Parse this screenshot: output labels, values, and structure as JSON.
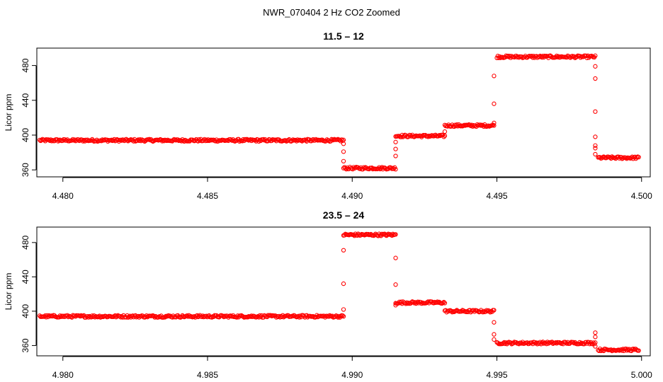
{
  "figure_title": "NWR_070404  2 Hz CO2 Zoomed",
  "colors": {
    "points": "#ff0000",
    "axis": "#000000"
  },
  "chart_data": [
    {
      "type": "scatter",
      "title": "11.5 – 12",
      "xlabel": "",
      "ylabel": "Licor ppm",
      "xlim": [
        4.4791,
        4.5003
      ],
      "ylim": [
        352,
        500
      ],
      "xticks": [
        "4.480",
        "4.485",
        "4.490",
        "4.495",
        "4.500"
      ],
      "xtick_values": [
        4.48,
        4.485,
        4.49,
        4.495,
        4.5
      ],
      "yticks": [
        "360",
        "400",
        "440",
        "480"
      ],
      "ytick_values": [
        360,
        400,
        440,
        480
      ],
      "grid": false,
      "marker": "open-circle",
      "segments": [
        {
          "x_start": 4.4792,
          "x_end": 4.4897,
          "y": 394
        },
        {
          "x_start": 4.4897,
          "x_end": 4.4915,
          "y": 362
        },
        {
          "x_start": 4.4915,
          "x_end": 4.4932,
          "y": 399
        },
        {
          "x_start": 4.4932,
          "x_end": 4.4949,
          "y": 411
        },
        {
          "x_start": 4.495,
          "x_end": 4.4984,
          "y": 490
        },
        {
          "x_start": 4.4985,
          "x_end": 4.4999,
          "y": 374
        }
      ],
      "transitions": [
        {
          "x": 4.4897,
          "y": [
            390,
            381,
            370
          ]
        },
        {
          "x": 4.4915,
          "y": [
            376,
            384,
            392
          ]
        },
        {
          "x": 4.4932,
          "y": [
            404
          ]
        },
        {
          "x": 4.4949,
          "y": [
            414,
            436,
            468
          ]
        },
        {
          "x": 4.4984,
          "y": [
            479,
            465,
            427,
            398,
            388,
            385,
            378
          ]
        }
      ]
    },
    {
      "type": "scatter",
      "title": "23.5 – 24",
      "xlabel": "",
      "ylabel": "Licor ppm",
      "xlim": [
        4.9791,
        5.0003
      ],
      "ylim": [
        348,
        498
      ],
      "xticks": [
        "4.980",
        "4.985",
        "4.990",
        "4.995",
        "5.000"
      ],
      "xtick_values": [
        4.98,
        4.985,
        4.99,
        4.995,
        5.0
      ],
      "yticks": [
        "360",
        "400",
        "440",
        "480"
      ],
      "ytick_values": [
        360,
        400,
        440,
        480
      ],
      "grid": false,
      "marker": "open-circle",
      "segments": [
        {
          "x_start": 4.9792,
          "x_end": 4.9897,
          "y": 394
        },
        {
          "x_start": 4.9897,
          "x_end": 4.9915,
          "y": 489
        },
        {
          "x_start": 4.9915,
          "x_end": 4.9932,
          "y": 410
        },
        {
          "x_start": 4.9932,
          "x_end": 4.9949,
          "y": 400
        },
        {
          "x_start": 4.995,
          "x_end": 4.9984,
          "y": 363
        },
        {
          "x_start": 4.9985,
          "x_end": 4.9999,
          "y": 355
        }
      ],
      "transitions": [
        {
          "x": 4.9897,
          "y": [
            402,
            432,
            471
          ]
        },
        {
          "x": 4.9915,
          "y": [
            462,
            431,
            407
          ]
        },
        {
          "x": 4.9949,
          "y": [
            387,
            373,
            367
          ]
        },
        {
          "x": 4.9984,
          "y": [
            375,
            370,
            359
          ]
        }
      ]
    }
  ]
}
